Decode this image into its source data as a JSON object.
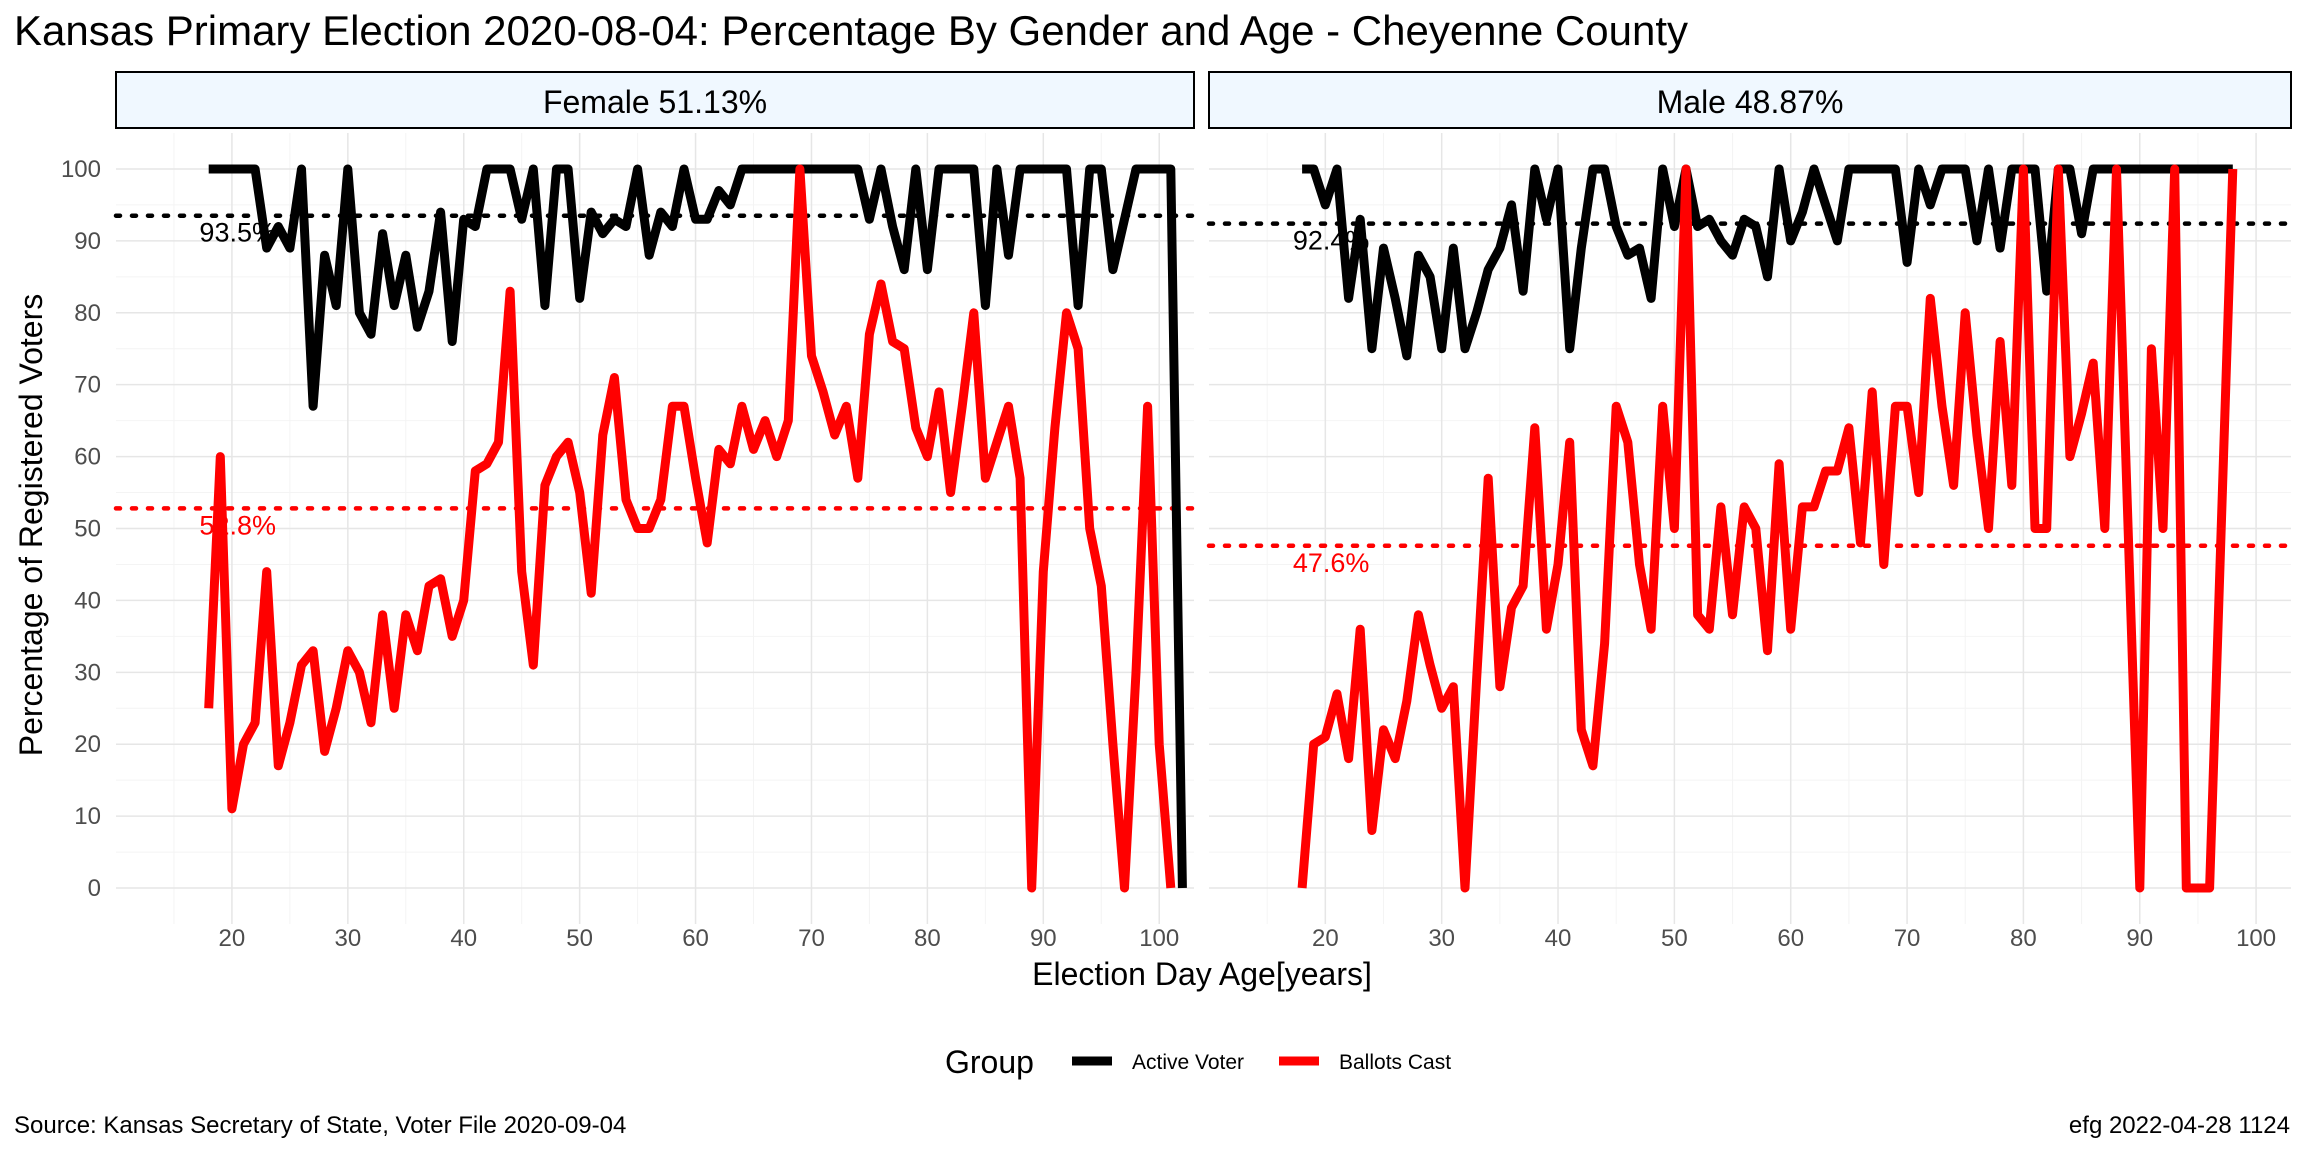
{
  "chart_data": {
    "type": "line",
    "title": "Kansas Primary Election 2020-08-04:  Percentage By Gender and Age - Cheyenne County",
    "xlabel": "Election Day Age[years]",
    "ylabel": "Percentage of Registered Voters",
    "xlim": [
      10,
      103
    ],
    "ylim": [
      -5,
      105
    ],
    "x_ticks": [
      20,
      30,
      40,
      50,
      60,
      70,
      80,
      90,
      100
    ],
    "y_ticks": [
      0,
      10,
      20,
      30,
      40,
      50,
      60,
      70,
      80,
      90,
      100
    ],
    "grid": true,
    "legend": {
      "title": "Group",
      "placement": "bottom",
      "entries": [
        {
          "label": "Active Voter",
          "color": "#000000"
        },
        {
          "label": "Ballots Cast",
          "color": "#ff0000"
        }
      ]
    },
    "source": "Source:  Kansas Secretary of State, Voter File  2020-09-04",
    "credit": "efg 2022-04-28 1124",
    "panels": [
      {
        "strip": "Female 51.13%",
        "reference_lines": [
          {
            "series": "Active Voter",
            "value": 93.5,
            "label": "93.5%",
            "color": "#000000"
          },
          {
            "series": "Ballots Cast",
            "value": 52.8,
            "label": "52.8%",
            "color": "#ff0000"
          }
        ],
        "series": [
          {
            "name": "Active Voter",
            "color": "#000000",
            "x": [
              18,
              19,
              20,
              21,
              22,
              23,
              24,
              25,
              26,
              27,
              28,
              29,
              30,
              31,
              32,
              33,
              34,
              35,
              36,
              37,
              38,
              39,
              40,
              41,
              42,
              43,
              44,
              45,
              46,
              47,
              48,
              49,
              50,
              51,
              52,
              53,
              54,
              55,
              56,
              57,
              58,
              59,
              60,
              61,
              62,
              63,
              64,
              65,
              66,
              67,
              68,
              69,
              70,
              71,
              72,
              73,
              74,
              75,
              76,
              77,
              78,
              79,
              80,
              81,
              82,
              83,
              84,
              85,
              86,
              87,
              88,
              89,
              90,
              91,
              92,
              93,
              94,
              95,
              96,
              97,
              98,
              99,
              100,
              101,
              102
            ],
            "y": [
              100,
              100,
              100,
              100,
              100,
              89,
              92,
              89,
              100,
              67,
              88,
              81,
              100,
              80,
              77,
              91,
              81,
              88,
              78,
              83,
              94,
              76,
              93,
              92,
              100,
              100,
              100,
              93,
              100,
              81,
              100,
              100,
              82,
              94,
              91,
              93,
              92,
              100,
              88,
              94,
              92,
              100,
              93,
              93,
              97,
              95,
              100,
              100,
              100,
              100,
              100,
              100,
              100,
              100,
              100,
              100,
              100,
              93,
              100,
              92,
              86,
              100,
              86,
              100,
              100,
              100,
              100,
              81,
              100,
              88,
              100,
              100,
              100,
              100,
              100,
              81,
              100,
              100,
              86,
              93,
              100,
              100,
              100,
              100,
              0
            ]
          },
          {
            "name": "Ballots Cast",
            "color": "#ff0000",
            "x": [
              18,
              19,
              20,
              21,
              22,
              23,
              24,
              25,
              26,
              27,
              28,
              29,
              30,
              31,
              32,
              33,
              34,
              35,
              36,
              37,
              38,
              39,
              40,
              41,
              42,
              43,
              44,
              45,
              46,
              47,
              48,
              49,
              50,
              51,
              52,
              53,
              54,
              55,
              56,
              57,
              58,
              59,
              60,
              61,
              62,
              63,
              64,
              65,
              66,
              67,
              68,
              69,
              70,
              71,
              72,
              73,
              74,
              75,
              76,
              77,
              78,
              79,
              80,
              81,
              82,
              83,
              84,
              85,
              86,
              87,
              88,
              89,
              90,
              91,
              92,
              93,
              94,
              95,
              96,
              97,
              98,
              99,
              100,
              101
            ],
            "y": [
              25,
              60,
              11,
              20,
              23,
              44,
              17,
              23,
              31,
              33,
              19,
              25,
              33,
              30,
              23,
              38,
              25,
              38,
              33,
              42,
              43,
              35,
              40,
              58,
              59,
              62,
              83,
              44,
              31,
              56,
              60,
              62,
              55,
              41,
              63,
              71,
              54,
              50,
              50,
              54,
              67,
              67,
              57,
              48,
              61,
              59,
              67,
              61,
              65,
              60,
              65,
              100,
              74,
              69,
              63,
              67,
              57,
              77,
              84,
              76,
              75,
              64,
              60,
              69,
              55,
              67,
              80,
              57,
              62,
              67,
              57,
              0,
              44,
              64,
              80,
              75,
              50,
              42,
              20,
              0,
              30,
              67,
              20,
              0
            ]
          }
        ]
      },
      {
        "strip": "Male 48.87%",
        "reference_lines": [
          {
            "series": "Active Voter",
            "value": 92.4,
            "label": "92.4%",
            "color": "#000000"
          },
          {
            "series": "Ballots Cast",
            "value": 47.6,
            "label": "47.6%",
            "color": "#ff0000"
          }
        ],
        "series": [
          {
            "name": "Active Voter",
            "color": "#000000",
            "x": [
              18,
              19,
              20,
              21,
              22,
              23,
              24,
              25,
              26,
              27,
              28,
              29,
              30,
              31,
              32,
              33,
              34,
              35,
              36,
              37,
              38,
              39,
              40,
              41,
              42,
              43,
              44,
              45,
              46,
              47,
              48,
              49,
              50,
              51,
              52,
              53,
              54,
              55,
              56,
              57,
              58,
              59,
              60,
              61,
              62,
              63,
              64,
              65,
              66,
              67,
              68,
              69,
              70,
              71,
              72,
              73,
              74,
              75,
              76,
              77,
              78,
              79,
              80,
              81,
              82,
              83,
              84,
              85,
              86,
              87,
              88,
              89,
              90,
              91,
              92,
              93,
              94,
              95,
              96,
              97,
              98
            ],
            "y": [
              100,
              100,
              95,
              100,
              82,
              93,
              75,
              89,
              82,
              74,
              88,
              85,
              75,
              89,
              75,
              80,
              86,
              89,
              95,
              83,
              100,
              93,
              100,
              75,
              89,
              100,
              100,
              92,
              88,
              89,
              82,
              100,
              92,
              100,
              92,
              93,
              90,
              88,
              93,
              92,
              85,
              100,
              90,
              94,
              100,
              95,
              90,
              100,
              100,
              100,
              100,
              100,
              87,
              100,
              95,
              100,
              100,
              100,
              90,
              100,
              89,
              100,
              100,
              100,
              83,
              100,
              100,
              91,
              100,
              100,
              100,
              100,
              100,
              100,
              100,
              100,
              100,
              100,
              100,
              100,
              100
            ]
          },
          {
            "name": "Ballots Cast",
            "color": "#ff0000",
            "x": [
              18,
              19,
              20,
              21,
              22,
              23,
              24,
              25,
              26,
              27,
              28,
              29,
              30,
              31,
              32,
              33,
              34,
              35,
              36,
              37,
              38,
              39,
              40,
              41,
              42,
              43,
              44,
              45,
              46,
              47,
              48,
              49,
              50,
              51,
              52,
              53,
              54,
              55,
              56,
              57,
              58,
              59,
              60,
              61,
              62,
              63,
              64,
              65,
              66,
              67,
              68,
              69,
              70,
              71,
              72,
              73,
              74,
              75,
              76,
              77,
              78,
              79,
              80,
              81,
              82,
              83,
              84,
              85,
              86,
              87,
              88,
              89,
              90,
              91,
              92,
              93,
              94,
              95,
              96,
              97,
              98
            ],
            "y": [
              0,
              20,
              21,
              27,
              18,
              36,
              8,
              22,
              18,
              26,
              38,
              31,
              25,
              28,
              0,
              29,
              57,
              28,
              39,
              42,
              64,
              36,
              45,
              62,
              22,
              17,
              34,
              67,
              62,
              45,
              36,
              67,
              50,
              100,
              38,
              36,
              53,
              38,
              53,
              50,
              33,
              59,
              36,
              53,
              53,
              58,
              58,
              64,
              48,
              69,
              45,
              67,
              67,
              55,
              82,
              67,
              56,
              80,
              63,
              50,
              76,
              56,
              100,
              50,
              50,
              100,
              60,
              66,
              73,
              50,
              100,
              50,
              0,
              75,
              50,
              100,
              0,
              0,
              0,
              50,
              100
            ]
          }
        ]
      }
    ]
  }
}
